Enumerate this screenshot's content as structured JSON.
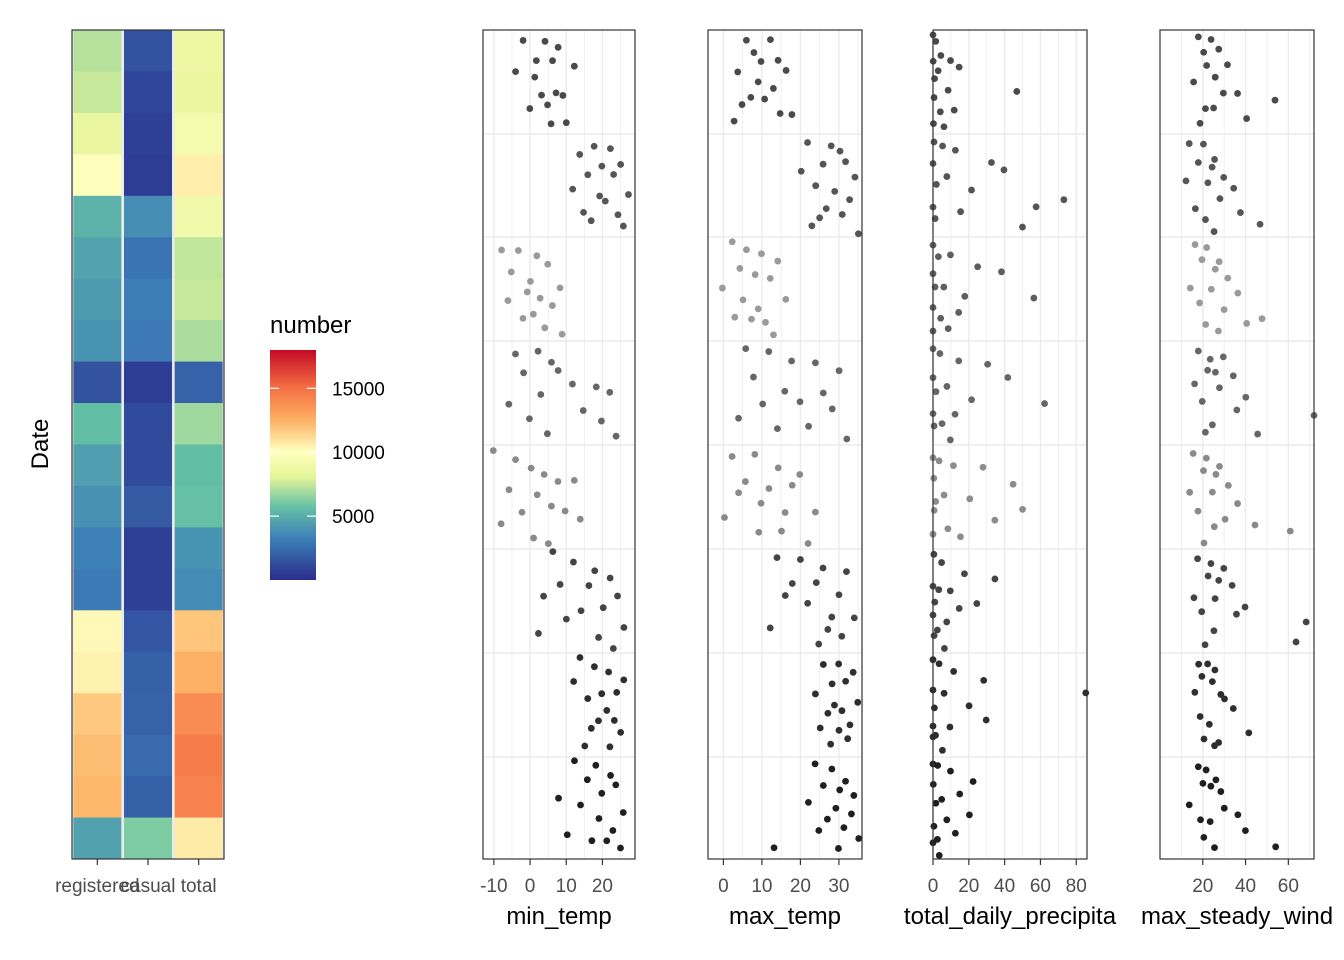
{
  "chart_data": [
    {
      "type": "heatmap",
      "ylabel": "Date",
      "xlabel": "",
      "categories": [
        "registered",
        "casual",
        "total"
      ],
      "scale": {
        "palette": "Spectral (reversed)",
        "min": 0,
        "max": 18000
      },
      "legend": {
        "title": "number",
        "placement": "right",
        "breaks": [
          5000,
          10000,
          15000
        ],
        "labels": [
          "5000",
          "10000",
          "15000"
        ]
      },
      "rows_top_to_bottom": [
        {
          "date_block": 1,
          "registered": 7200,
          "casual": 1500,
          "total": 8700
        },
        {
          "date_block": 2,
          "registered": 7500,
          "casual": 1000,
          "total": 8500
        },
        {
          "date_block": 3,
          "registered": 8500,
          "casual": 700,
          "total": 9200
        },
        {
          "date_block": 4,
          "registered": 10000,
          "casual": 600,
          "total": 10600
        },
        {
          "date_block": 5,
          "registered": 5200,
          "casual": 3800,
          "total": 9000
        },
        {
          "date_block": 6,
          "registered": 4600,
          "casual": 2800,
          "total": 7400
        },
        {
          "date_block": 7,
          "registered": 4300,
          "casual": 3200,
          "total": 7500
        },
        {
          "date_block": 8,
          "registered": 4000,
          "casual": 3000,
          "total": 7000
        },
        {
          "date_block": 9,
          "registered": 1500,
          "casual": 600,
          "total": 2100
        },
        {
          "date_block": 10,
          "registered": 5600,
          "casual": 1200,
          "total": 6800
        },
        {
          "date_block": 11,
          "registered": 4400,
          "casual": 1200,
          "total": 5600
        },
        {
          "date_block": 12,
          "registered": 3900,
          "casual": 1800,
          "total": 5700
        },
        {
          "date_block": 13,
          "registered": 3300,
          "casual": 700,
          "total": 4000
        },
        {
          "date_block": 14,
          "registered": 3000,
          "casual": 700,
          "total": 3700
        },
        {
          "date_block": 15,
          "registered": 10300,
          "casual": 1600,
          "total": 11900
        },
        {
          "date_block": 16,
          "registered": 10500,
          "casual": 2000,
          "total": 12500
        },
        {
          "date_block": 17,
          "registered": 11800,
          "casual": 2100,
          "total": 13900
        },
        {
          "date_block": 18,
          "registered": 12100,
          "casual": 2400,
          "total": 14500
        },
        {
          "date_block": 19,
          "registered": 12300,
          "casual": 2000,
          "total": 14300
        },
        {
          "date_block": 20,
          "registered": 4500,
          "casual": 6200,
          "total": 10700
        }
      ]
    },
    {
      "type": "scatter",
      "xlabel": "min_temp",
      "ylabel": "",
      "xticks": [
        -10,
        0,
        10,
        20
      ],
      "xlim": [
        -13,
        29
      ],
      "y_order": "date (top = earliest)",
      "series": [
        {
          "segment": 1,
          "values": [
            -2,
            4,
            8,
            2,
            6,
            12,
            -4,
            1,
            7,
            3,
            9,
            5,
            0,
            10,
            6
          ]
        },
        {
          "segment": 2,
          "values": [
            18,
            22,
            14,
            25,
            20,
            16,
            23,
            12,
            19,
            27,
            21,
            15,
            24,
            17,
            26
          ]
        },
        {
          "segment": 3,
          "values": [
            -8,
            -3,
            2,
            5,
            -5,
            0,
            8,
            -1,
            3,
            -6,
            6,
            1,
            -2,
            4,
            9
          ]
        },
        {
          "segment": 4,
          "values": [
            -4,
            2,
            6,
            -2,
            8,
            12,
            18,
            22,
            3,
            -6,
            15,
            0,
            20,
            5,
            24
          ]
        },
        {
          "segment": 5,
          "values": [
            -10,
            -4,
            0,
            4,
            8,
            12,
            -6,
            2,
            6,
            -2,
            10,
            14,
            -8,
            1,
            5
          ]
        },
        {
          "segment": 6,
          "values": [
            6,
            12,
            18,
            22,
            8,
            16,
            24,
            4,
            20,
            14,
            10,
            26,
            2,
            19,
            23
          ]
        },
        {
          "segment": 7,
          "values": [
            14,
            18,
            22,
            26,
            12,
            20,
            24,
            16,
            21,
            19,
            23,
            17,
            25,
            15,
            22
          ]
        },
        {
          "segment": 8,
          "values": [
            12,
            18,
            22,
            16,
            24,
            20,
            8,
            14,
            26,
            19,
            23,
            10,
            21,
            17,
            25
          ]
        }
      ]
    },
    {
      "type": "scatter",
      "xlabel": "max_temp",
      "ylabel": "",
      "xticks": [
        0,
        10,
        20,
        30
      ],
      "xlim": [
        -4,
        36
      ],
      "y_order": "date (top = earliest)",
      "series": [
        {
          "segment": 1,
          "values": [
            6,
            12,
            8,
            14,
            10,
            4,
            16,
            9,
            13,
            7,
            11,
            5,
            15,
            18,
            3
          ]
        },
        {
          "segment": 2,
          "values": [
            22,
            28,
            30,
            26,
            32,
            20,
            34,
            24,
            29,
            33,
            27,
            31,
            25,
            23,
            35
          ]
        },
        {
          "segment": 3,
          "values": [
            2,
            6,
            10,
            14,
            4,
            8,
            12,
            0,
            16,
            5,
            9,
            3,
            7,
            11,
            13
          ]
        },
        {
          "segment": 4,
          "values": [
            6,
            12,
            18,
            24,
            30,
            8,
            16,
            26,
            10,
            20,
            28,
            4,
            14,
            22,
            32
          ]
        },
        {
          "segment": 5,
          "values": [
            2,
            8,
            14,
            20,
            6,
            12,
            18,
            4,
            10,
            16,
            24,
            0,
            9,
            15,
            22
          ]
        },
        {
          "segment": 6,
          "values": [
            14,
            20,
            26,
            32,
            18,
            24,
            30,
            16,
            22,
            28,
            34,
            12,
            27,
            31,
            25
          ]
        },
        {
          "segment": 7,
          "values": [
            26,
            30,
            34,
            28,
            32,
            24,
            35,
            29,
            31,
            27,
            33,
            25,
            30,
            32,
            28
          ]
        },
        {
          "segment": 8,
          "values": [
            24,
            28,
            32,
            26,
            30,
            34,
            22,
            29,
            33,
            27,
            31,
            25,
            35,
            30,
            13
          ]
        }
      ]
    },
    {
      "type": "scatter",
      "xlabel": "total_daily_precipita",
      "ylabel": "",
      "xticks": [
        0,
        20,
        40,
        60,
        80
      ],
      "xlim": [
        0,
        86
      ],
      "y_order": "date (top = earliest)",
      "series": [
        {
          "segment": 1,
          "values": [
            0,
            2,
            5,
            10,
            0,
            15,
            3,
            1,
            8,
            47,
            0,
            12,
            4,
            0,
            6
          ]
        },
        {
          "segment": 2,
          "values": [
            0,
            5,
            12,
            33,
            0,
            40,
            8,
            2,
            22,
            73,
            0,
            57,
            15,
            1,
            50
          ]
        },
        {
          "segment": 3,
          "values": [
            0,
            3,
            10,
            25,
            0,
            38,
            6,
            1,
            18,
            56,
            0,
            14,
            4,
            0,
            9
          ]
        },
        {
          "segment": 4,
          "values": [
            0,
            4,
            15,
            30,
            0,
            42,
            8,
            2,
            22,
            62,
            0,
            12,
            5,
            0,
            10
          ]
        },
        {
          "segment": 5,
          "values": [
            0,
            3,
            12,
            28,
            0,
            45,
            6,
            1,
            20,
            50,
            0,
            35,
            8,
            0,
            15
          ]
        },
        {
          "segment": 6,
          "values": [
            0,
            5,
            18,
            35,
            0,
            10,
            3,
            1,
            24,
            14,
            0,
            8,
            2,
            0,
            6
          ]
        },
        {
          "segment": 7,
          "values": [
            0,
            4,
            12,
            28,
            0,
            85,
            6,
            1,
            20,
            30,
            0,
            9,
            2,
            0,
            5
          ]
        },
        {
          "segment": 8,
          "values": [
            0,
            3,
            10,
            22,
            0,
            15,
            5,
            1,
            20,
            8,
            0,
            12,
            2,
            0,
            4
          ]
        }
      ]
    },
    {
      "type": "scatter",
      "xlabel": "max_steady_wind",
      "ylabel": "",
      "xticks": [
        20,
        40,
        60
      ],
      "xlim": [
        0,
        72
      ],
      "y_order": "date (top = earliest)",
      "series": [
        {
          "segment": 1,
          "values": [
            18,
            24,
            28,
            20,
            32,
            22,
            26,
            16,
            30,
            36,
            54,
            21,
            25,
            40,
            19
          ]
        },
        {
          "segment": 2,
          "values": [
            14,
            20,
            26,
            18,
            24,
            30,
            12,
            22,
            34,
            28,
            16,
            38,
            21,
            47,
            25
          ]
        },
        {
          "segment": 3,
          "values": [
            16,
            22,
            28,
            20,
            26,
            32,
            14,
            24,
            36,
            18,
            30,
            48,
            21,
            40,
            27
          ]
        },
        {
          "segment": 4,
          "values": [
            18,
            24,
            30,
            22,
            26,
            34,
            16,
            28,
            40,
            20,
            36,
            72,
            25,
            46,
            21
          ]
        },
        {
          "segment": 5,
          "values": [
            16,
            22,
            28,
            20,
            26,
            32,
            14,
            24,
            36,
            18,
            30,
            44,
            25,
            61,
            21
          ]
        },
        {
          "segment": 6,
          "values": [
            18,
            24,
            30,
            22,
            28,
            34,
            16,
            26,
            40,
            20,
            36,
            68,
            25,
            64,
            21
          ]
        },
        {
          "segment": 7,
          "values": [
            18,
            22,
            26,
            20,
            24,
            28,
            16,
            30,
            34,
            19,
            23,
            42,
            21,
            25,
            27
          ]
        },
        {
          "segment": 8,
          "values": [
            18,
            22,
            26,
            20,
            24,
            28,
            14,
            30,
            36,
            19,
            23,
            40,
            21,
            54,
            25
          ]
        }
      ]
    }
  ]
}
